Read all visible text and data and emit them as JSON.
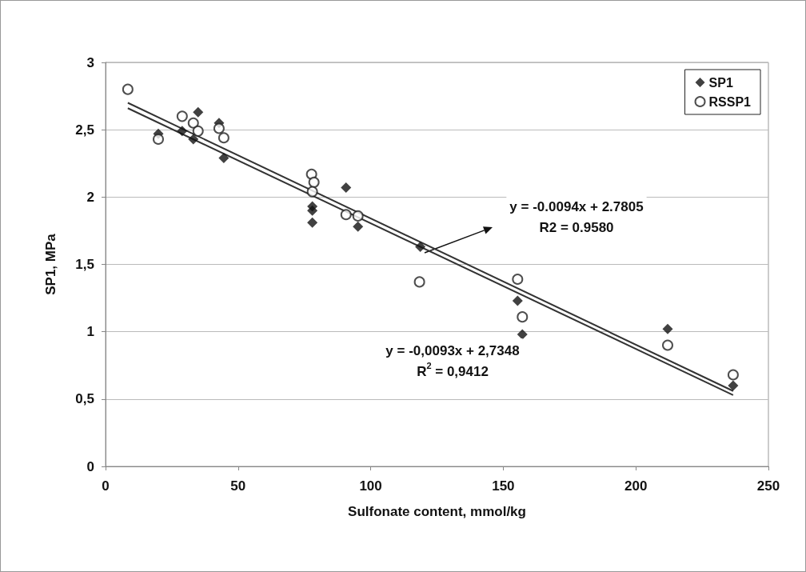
{
  "chart_data": {
    "type": "scatter",
    "xlabel": "Sulfonate content, mmol/kg",
    "ylabel": "SP1, MPa",
    "xlim": [
      0,
      250
    ],
    "xticks": [
      0,
      50,
      100,
      150,
      200,
      250
    ],
    "ylim": [
      0,
      3
    ],
    "yticks": [
      0,
      {
        "value": 0.5,
        "label": "0,5"
      },
      1,
      {
        "value": 1.5,
        "label": "1,5"
      },
      2,
      {
        "value": 2.5,
        "label": "2,5"
      },
      3
    ],
    "grid": "y",
    "legend": "top right",
    "series": [
      {
        "name": "SP1",
        "color": "#111111",
        "marker": "diamond",
        "x": [
          19.9,
          28.9,
          34.9,
          33.1,
          42.8,
          44.6,
          78,
          78,
          78,
          90.7,
          95.2,
          118.7,
          155.4,
          157.2,
          212,
          236.7
        ],
        "values": [
          2.47,
          2.49,
          2.63,
          2.43,
          2.55,
          2.29,
          1.93,
          1.9,
          1.81,
          2.07,
          1.78,
          1.63,
          1.23,
          0.98,
          1.02,
          0.6
        ]
      },
      {
        "name": "RSSP1",
        "color": "#222222",
        "marker": "circle",
        "x": [
          8.4,
          19.9,
          28.9,
          33.1,
          34.9,
          42.8,
          44.6,
          77.7,
          78.6,
          78,
          90.7,
          95.2,
          118.4,
          155.4,
          157.2,
          212,
          236.7
        ],
        "values": [
          2.8,
          2.43,
          2.6,
          2.55,
          2.49,
          2.51,
          2.44,
          2.17,
          2.11,
          2.04,
          1.87,
          1.86,
          1.37,
          1.39,
          1.11,
          0.9,
          0.68
        ]
      },
      {
        "type": "line",
        "color": "#333333",
        "x": [
          8.4,
          236.7
        ],
        "values": [
          2.7,
          0.56
        ]
      },
      {
        "type": "line",
        "color": "#333333",
        "x": [
          8.4,
          236.7
        ],
        "values": [
          2.66,
          0.53
        ]
      }
    ],
    "annotations": [
      "y = -0.0094x + 2.7805\nR2 = 0.9580",
      "y = -0,0093x + 2,7348\nR$^{2}$ = 0,9412"
    ]
  }
}
